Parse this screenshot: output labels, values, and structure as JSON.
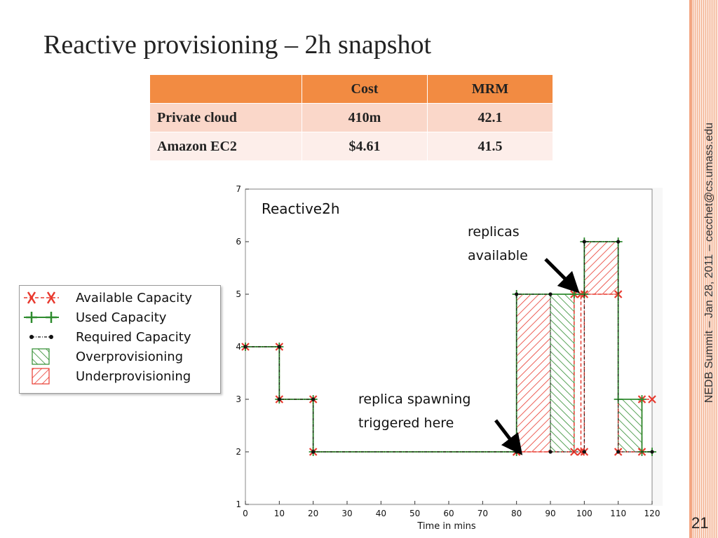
{
  "slide": {
    "title": "Reactive provisioning – 2h snapshot",
    "side_text": "NEDB Summit – Jan 28, 2011 – cecchet@cs.umass.edu",
    "page_number": "21"
  },
  "table": {
    "headers": [
      "",
      "Cost",
      "MRM"
    ],
    "rows": [
      [
        "Private cloud",
        "410m",
        "42.1"
      ],
      [
        "Amazon EC2",
        "$4.61",
        "41.5"
      ]
    ]
  },
  "annotations": {
    "replicas_available": [
      "replicas",
      "available"
    ],
    "replica_spawning": [
      "replica spawning",
      "triggered here"
    ]
  },
  "legend": {
    "items": [
      {
        "label": "Available Capacity",
        "key": "available"
      },
      {
        "label": "Used Capacity",
        "key": "used"
      },
      {
        "label": "Required Capacity",
        "key": "required"
      },
      {
        "label": "Overprovisioning",
        "key": "over"
      },
      {
        "label": "Underprovisioning",
        "key": "under"
      }
    ]
  },
  "colors": {
    "available": "#e8392e",
    "used": "#2e8b2e",
    "required": "#111111",
    "over": "#2e8b2e",
    "under": "#e8392e",
    "table_header": "#f28b42",
    "table_row1": "#fad7c9",
    "table_row2": "#fdeeea",
    "stripe": "#f3b08e"
  },
  "chart_data": {
    "type": "line",
    "title": "Reactive2h",
    "xlabel": "Time in mins",
    "ylabel": "",
    "xlim": [
      0,
      120
    ],
    "ylim": [
      1,
      7
    ],
    "x_ticks": [
      0,
      10,
      20,
      30,
      40,
      50,
      60,
      70,
      80,
      90,
      100,
      110,
      120
    ],
    "y_ticks": [
      1,
      2,
      3,
      4,
      5,
      6,
      7
    ],
    "grid": false,
    "series": [
      {
        "name": "Available Capacity",
        "x": [
          0,
          10,
          10,
          20,
          20,
          80,
          80,
          97,
          97,
          99,
          99,
          100,
          100,
          110,
          110,
          117,
          117,
          120
        ],
        "y": [
          4,
          4,
          3,
          3,
          2,
          2,
          2,
          2,
          5,
          5,
          2,
          2,
          5,
          5,
          2,
          2,
          3,
          3
        ]
      },
      {
        "name": "Used Capacity",
        "x": [
          0,
          10,
          10,
          20,
          20,
          80,
          80,
          97,
          97,
          100,
          100,
          110,
          110,
          117,
          117,
          120
        ],
        "y": [
          4,
          4,
          3,
          3,
          2,
          2,
          5,
          5,
          5,
          5,
          6,
          6,
          3,
          3,
          2,
          2
        ]
      },
      {
        "name": "Required Capacity",
        "x": [
          0,
          10,
          10,
          20,
          20,
          80,
          80,
          90,
          90,
          100,
          100,
          110,
          110,
          120
        ],
        "y": [
          4,
          4,
          3,
          3,
          2,
          2,
          5,
          5,
          2,
          2,
          6,
          6,
          2,
          2
        ]
      }
    ],
    "regions": [
      {
        "type": "Underprovisioning",
        "x": [
          80,
          90
        ],
        "y": [
          2,
          5
        ]
      },
      {
        "type": "Overprovisioning",
        "x": [
          90,
          97
        ],
        "y": [
          2,
          5
        ]
      },
      {
        "type": "Underprovisioning",
        "x": [
          100,
          110
        ],
        "y": [
          5,
          6
        ]
      },
      {
        "type": "Overprovisioning",
        "x": [
          110,
          117
        ],
        "y": [
          2,
          3
        ]
      }
    ]
  }
}
